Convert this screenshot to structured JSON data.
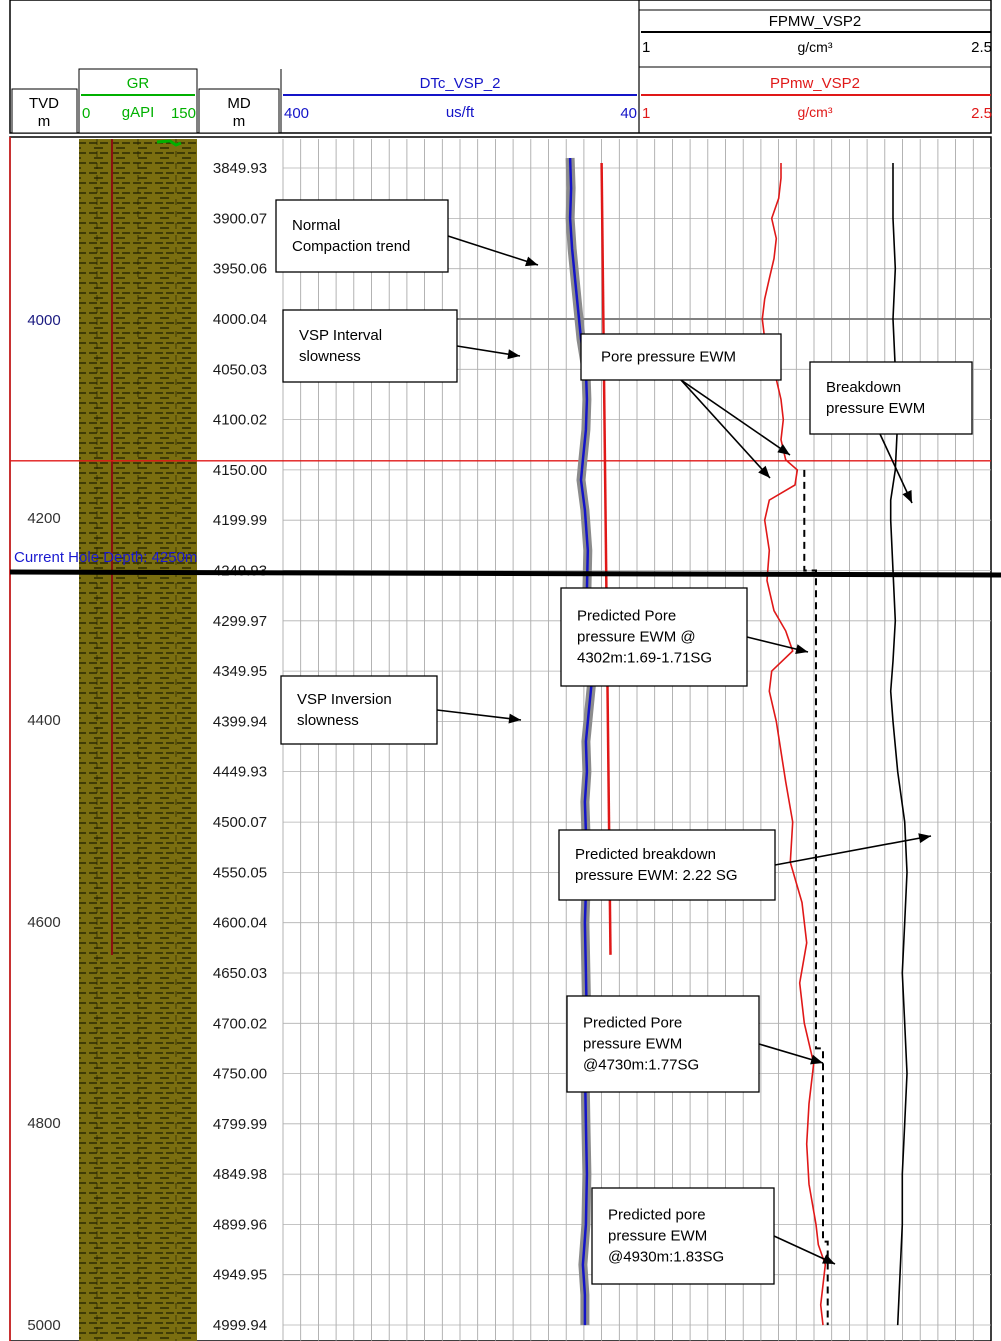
{
  "header": {
    "tvd": {
      "title": "TVD",
      "unit": "m"
    },
    "gr": {
      "title": "GR",
      "min": "0",
      "unit": "gAPI",
      "max": "150"
    },
    "md": {
      "title": "MD",
      "unit": "m"
    },
    "dtc": {
      "title": "DTc_VSP_2",
      "min": "400",
      "unit": "us/ft",
      "max": "40"
    },
    "fpmw": {
      "title": "FPMW_VSP2",
      "min": "1",
      "unit": "g/cm³",
      "max": "2.5"
    },
    "ppmw": {
      "title": "PPmw_VSP2",
      "min": "1",
      "unit": "g/cm³",
      "max": "2.5"
    }
  },
  "colors": {
    "gr": "#00b000",
    "dtc": "#1414c8",
    "ppmw": "#e01818",
    "fpmw": "#000000",
    "gr_fill": "#7a6e10",
    "tvd_blue": "#1a1a80",
    "current_hole": "#1a1ad0"
  },
  "current_hole_depth": "Current Hole Depth: 4250m",
  "callouts": [
    {
      "id": "normal-compaction",
      "lines": [
        "Normal",
        "Compaction trend"
      ],
      "color": "#1a1a60"
    },
    {
      "id": "vsp-interval",
      "lines": [
        "VSP Interval",
        "slowness"
      ],
      "color": "#1a1a60"
    },
    {
      "id": "pore-pressure",
      "lines": [
        "Pore pressure EWM"
      ],
      "color": "#e01818"
    },
    {
      "id": "breakdown-pressure",
      "lines": [
        "Breakdown",
        "pressure EWM"
      ],
      "color": "#000000"
    },
    {
      "id": "pred-pore-4302",
      "lines": [
        "Predicted Pore",
        "pressure EWM @",
        "4302m:1.69-1.71SG"
      ],
      "color": "#000000"
    },
    {
      "id": "vsp-inversion",
      "lines": [
        "VSP Inversion",
        "slowness"
      ],
      "color": "#1a1a60"
    },
    {
      "id": "pred-breakdown",
      "lines": [
        "Predicted breakdown",
        "pressure EWM: 2.22 SG"
      ],
      "color": "#000000"
    },
    {
      "id": "pred-pore-4730",
      "lines": [
        "Predicted Pore",
        "pressure EWM",
        "@4730m:1.77SG"
      ],
      "color": "#000000"
    },
    {
      "id": "pred-pore-4930",
      "lines": [
        "Predicted pore",
        "pressure EWM",
        "@4930m:1.83SG"
      ],
      "color": "#000000"
    }
  ],
  "chart_data": {
    "type": "line",
    "title": "",
    "depth_axis": "MD (m)",
    "md_ticks": [
      "3849.93",
      "3900.07",
      "3950.06",
      "4000.04",
      "4050.03",
      "4100.02",
      "4150.00",
      "4199.99",
      "4249.93",
      "4299.97",
      "4349.95",
      "4399.94",
      "4449.93",
      "4500.07",
      "4550.05",
      "4600.04",
      "4650.03",
      "4700.02",
      "4750.00",
      "4799.99",
      "4849.98",
      "4899.96",
      "4949.95",
      "4999.94"
    ],
    "tvd_ticks": [
      "4000",
      "4200",
      "4400",
      "4600",
      "4800",
      "5000"
    ],
    "series": [
      {
        "name": "DTc_VSP_2",
        "unit": "us/ft",
        "range": [
          400,
          40
        ],
        "md": [
          3840,
          3870,
          3900,
          3930,
          3960,
          3990,
          4020,
          4050,
          4080,
          4110,
          4140,
          4160,
          4190,
          4230,
          4270,
          4300,
          4330,
          4360,
          4390,
          4420,
          4450,
          4480,
          4510,
          4540,
          4570,
          4600,
          4650,
          4700,
          4740,
          4800,
          4850,
          4900,
          4940,
          4970,
          5000
        ],
        "values": [
          108,
          107,
          108,
          106,
          103,
          100,
          97,
          92,
          91,
          92,
          95,
          97,
          93,
          90,
          91,
          92,
          90,
          86,
          89,
          92,
          91,
          93,
          92,
          91,
          92,
          93,
          92,
          91,
          93,
          92,
          91,
          92,
          95,
          93,
          93
        ]
      },
      {
        "name": "Normal compaction trend",
        "unit": "us/ft",
        "md": [
          3845,
          4632
        ],
        "values": [
          76,
          67
        ]
      },
      {
        "name": "PPmw_VSP2",
        "unit": "g/cm3",
        "range": [
          1,
          2.5
        ],
        "md": [
          3845,
          3860,
          3880,
          3900,
          3920,
          3940,
          3960,
          3980,
          4000,
          4020,
          4040,
          4060,
          4080,
          4100,
          4120,
          4140,
          4150,
          4165,
          4180,
          4200,
          4230,
          4260,
          4290,
          4310,
          4330,
          4350,
          4370,
          4400,
          4430,
          4460,
          4500,
          4540,
          4580,
          4620,
          4660,
          4700,
          4740,
          4780,
          4820,
          4860,
          4900,
          4920,
          4940,
          4960,
          4980,
          5000
        ],
        "values": [
          1.6,
          1.6,
          1.59,
          1.56,
          1.58,
          1.57,
          1.55,
          1.53,
          1.52,
          1.53,
          1.55,
          1.58,
          1.6,
          1.61,
          1.6,
          1.62,
          1.67,
          1.66,
          1.55,
          1.53,
          1.55,
          1.54,
          1.57,
          1.62,
          1.65,
          1.56,
          1.55,
          1.58,
          1.6,
          1.62,
          1.65,
          1.64,
          1.69,
          1.71,
          1.68,
          1.7,
          1.74,
          1.72,
          1.71,
          1.72,
          1.75,
          1.76,
          1.79,
          1.78,
          1.77,
          1.78
        ]
      },
      {
        "name": "FPMW_VSP2",
        "unit": "g/cm3",
        "range": [
          1,
          2.5
        ],
        "md": [
          3845,
          3900,
          3950,
          4000,
          4050,
          4100,
          4150,
          4180,
          4200,
          4250,
          4300,
          4340,
          4370,
          4400,
          4450,
          4500,
          4550,
          4600,
          4650,
          4700,
          4750,
          4800,
          4850,
          4900,
          4950,
          5000
        ],
        "values": [
          2.08,
          2.08,
          2.09,
          2.08,
          2.09,
          2.1,
          2.09,
          2.07,
          2.07,
          2.08,
          2.09,
          2.08,
          2.07,
          2.08,
          2.1,
          2.13,
          2.14,
          2.13,
          2.12,
          2.13,
          2.14,
          2.13,
          2.12,
          2.12,
          2.11,
          2.1
        ]
      },
      {
        "name": "Predicted pore pressure EWM",
        "unit": "g/cm3",
        "md": [
          4150,
          4250,
          4250,
          4725,
          4725,
          4917,
          4917,
          5000
        ],
        "values": [
          1.7,
          1.7,
          1.75,
          1.75,
          1.78,
          1.78,
          1.8,
          1.8
        ]
      }
    ]
  }
}
